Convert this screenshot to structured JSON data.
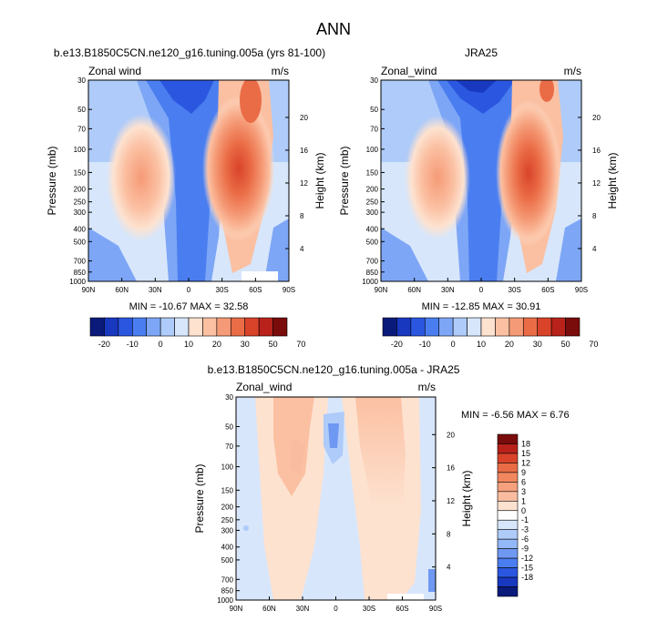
{
  "page_title": "ANN",
  "panels": [
    {
      "title": "b.e13.B1850C5CN.ne120_g16.tuning.005a (yrs 81-100)",
      "field_label": "Zonal wind",
      "units": "m/s",
      "stats": "MIN = -10.67  MAX = 32.58"
    },
    {
      "title": "JRA25",
      "field_label": "Zonal_wind",
      "units": "m/s",
      "stats": "MIN = -12.85  MAX = 30.91"
    },
    {
      "title": "b.e13.B1850C5CN.ne120_g16.tuning.005a - JRA25",
      "field_label": "Zonal_wind",
      "units": "m/s",
      "stats": "MIN =  -6.56  MAX =  6.76"
    }
  ],
  "chart_data": [
    {
      "type": "heatmap",
      "subtype": "filled-contour latitude-pressure cross section",
      "title": "b.e13.B1850C5CN.ne120_g16.tuning.005a (yrs 81-100)",
      "xlabel": "",
      "ylabel": "Pressure (mb)",
      "y2label": "Height (km)",
      "x_ticks": [
        "90N",
        "60N",
        "30N",
        "0",
        "30S",
        "60S",
        "90S"
      ],
      "y_ticks": [
        30,
        50,
        70,
        100,
        150,
        200,
        250,
        300,
        400,
        500,
        700,
        850,
        1000
      ],
      "y2_ticks": [
        4,
        8,
        12,
        16,
        20
      ],
      "y_scale": "log",
      "ylim": [
        1000,
        30
      ],
      "min": -10.67,
      "max": 32.58,
      "colorbar_levels": [
        -20,
        -10,
        0,
        10,
        20,
        30,
        50,
        70
      ]
    },
    {
      "type": "heatmap",
      "subtype": "filled-contour latitude-pressure cross section",
      "title": "JRA25",
      "xlabel": "",
      "ylabel": "Pressure (mb)",
      "y2label": "Height (km)",
      "x_ticks": [
        "90N",
        "60N",
        "30N",
        "0",
        "30S",
        "60S",
        "90S"
      ],
      "y_ticks": [
        30,
        50,
        70,
        100,
        150,
        200,
        250,
        300,
        400,
        500,
        700,
        850,
        1000
      ],
      "y2_ticks": [
        4,
        8,
        12,
        16,
        20
      ],
      "y_scale": "log",
      "ylim": [
        1000,
        30
      ],
      "min": -12.85,
      "max": 30.91,
      "colorbar_levels": [
        -20,
        -10,
        0,
        10,
        20,
        30,
        50,
        70
      ]
    },
    {
      "type": "heatmap",
      "subtype": "filled-contour latitude-pressure difference",
      "title": "b.e13.B1850C5CN.ne120_g16.tuning.005a - JRA25",
      "xlabel": "",
      "ylabel": "Pressure (mb)",
      "y2label": "Height (km)",
      "x_ticks": [
        "90N",
        "60N",
        "30N",
        "0",
        "30S",
        "60S",
        "90S"
      ],
      "y_ticks": [
        30,
        50,
        70,
        100,
        150,
        200,
        250,
        300,
        400,
        500,
        700,
        850,
        1000
      ],
      "y2_ticks": [
        4,
        8,
        12,
        16,
        20
      ],
      "y_scale": "log",
      "ylim": [
        1000,
        30
      ],
      "min": -6.56,
      "max": 6.76,
      "colorbar_levels": [
        18,
        15,
        12,
        9,
        6,
        3,
        1,
        0,
        -1,
        -3,
        -6,
        -9,
        -12,
        -15,
        -18
      ]
    }
  ],
  "colorbar_main": {
    "labels": [
      "-20",
      "-10",
      "0",
      "10",
      "20",
      "30",
      "50",
      "70"
    ],
    "colors": [
      "#0a1a7a",
      "#1838c0",
      "#2b57e0",
      "#4a7ef0",
      "#7ea6f6",
      "#aecbf9",
      "#d7e6fb",
      "#fde2d0",
      "#fbc0a2",
      "#f59a76",
      "#ea6c46",
      "#d9432a",
      "#b8221a",
      "#7a0c0c"
    ]
  },
  "colorbar_diff": {
    "labels": [
      "18",
      "15",
      "12",
      "9",
      "6",
      "3",
      "1",
      "0",
      "-1",
      "-3",
      "-6",
      "-9",
      "-12",
      "-15",
      "-18"
    ],
    "colors": [
      "#7a0c0c",
      "#b8221a",
      "#d9432a",
      "#ea6c46",
      "#f2875f",
      "#f6a07e",
      "#f9bca0",
      "#fde2d0",
      "#ffffff",
      "#d7e6fb",
      "#aecbf9",
      "#93b8f7",
      "#6f98f2",
      "#4a7ef0",
      "#2b57e0",
      "#1838c0",
      "#0a1a7a"
    ]
  },
  "colors": {
    "strong_neg": "#2b57e0",
    "mid_neg": "#7ea6f6",
    "weak_neg": "#aecbf9",
    "faint_neg": "#d7e6fb",
    "faint_pos": "#fde2d0",
    "weak_pos": "#fbc0a2",
    "mid_pos": "#f59a76",
    "strong_pos": "#ea6c46",
    "very_strong_pos": "#d9432a"
  }
}
